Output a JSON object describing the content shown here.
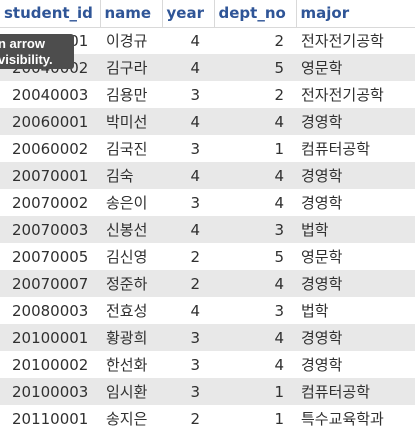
{
  "columns": {
    "student_id": "student_id",
    "name": "name",
    "year": "year",
    "dept_no": "dept_no",
    "major": "major"
  },
  "rows": [
    {
      "student_id": "20040001",
      "name": "이경규",
      "year": "4",
      "dept_no": "2",
      "major": "전자전기공학"
    },
    {
      "student_id": "20040002",
      "name": "김구라",
      "year": "4",
      "dept_no": "5",
      "major": "영문학"
    },
    {
      "student_id": "20040003",
      "name": "김용만",
      "year": "3",
      "dept_no": "2",
      "major": "전자전기공학"
    },
    {
      "student_id": "20060001",
      "name": "박미선",
      "year": "4",
      "dept_no": "4",
      "major": "경영학"
    },
    {
      "student_id": "20060002",
      "name": "김국진",
      "year": "3",
      "dept_no": "1",
      "major": "컴퓨터공학"
    },
    {
      "student_id": "20070001",
      "name": "김숙",
      "year": "4",
      "dept_no": "4",
      "major": "경영학"
    },
    {
      "student_id": "20070002",
      "name": "송은이",
      "year": "3",
      "dept_no": "4",
      "major": "경영학"
    },
    {
      "student_id": "20070003",
      "name": "신봉선",
      "year": "4",
      "dept_no": "3",
      "major": "법학"
    },
    {
      "student_id": "20070005",
      "name": "김신영",
      "year": "2",
      "dept_no": "5",
      "major": "영문학"
    },
    {
      "student_id": "20070007",
      "name": "정준하",
      "year": "2",
      "dept_no": "4",
      "major": "경영학"
    },
    {
      "student_id": "20080003",
      "name": "전효성",
      "year": "4",
      "dept_no": "3",
      "major": "법학"
    },
    {
      "student_id": "20100001",
      "name": "황광희",
      "year": "3",
      "dept_no": "4",
      "major": "경영학"
    },
    {
      "student_id": "20100002",
      "name": "한선화",
      "year": "3",
      "dept_no": "4",
      "major": "경영학"
    },
    {
      "student_id": "20100003",
      "name": "임시환",
      "year": "3",
      "dept_no": "1",
      "major": "컴퓨터공학"
    },
    {
      "student_id": "20110001",
      "name": "송지은",
      "year": "2",
      "dept_no": "1",
      "major": "특수교육학과"
    }
  ],
  "tooltip": {
    "line1": "n arrow",
    "line2": "visibility."
  }
}
